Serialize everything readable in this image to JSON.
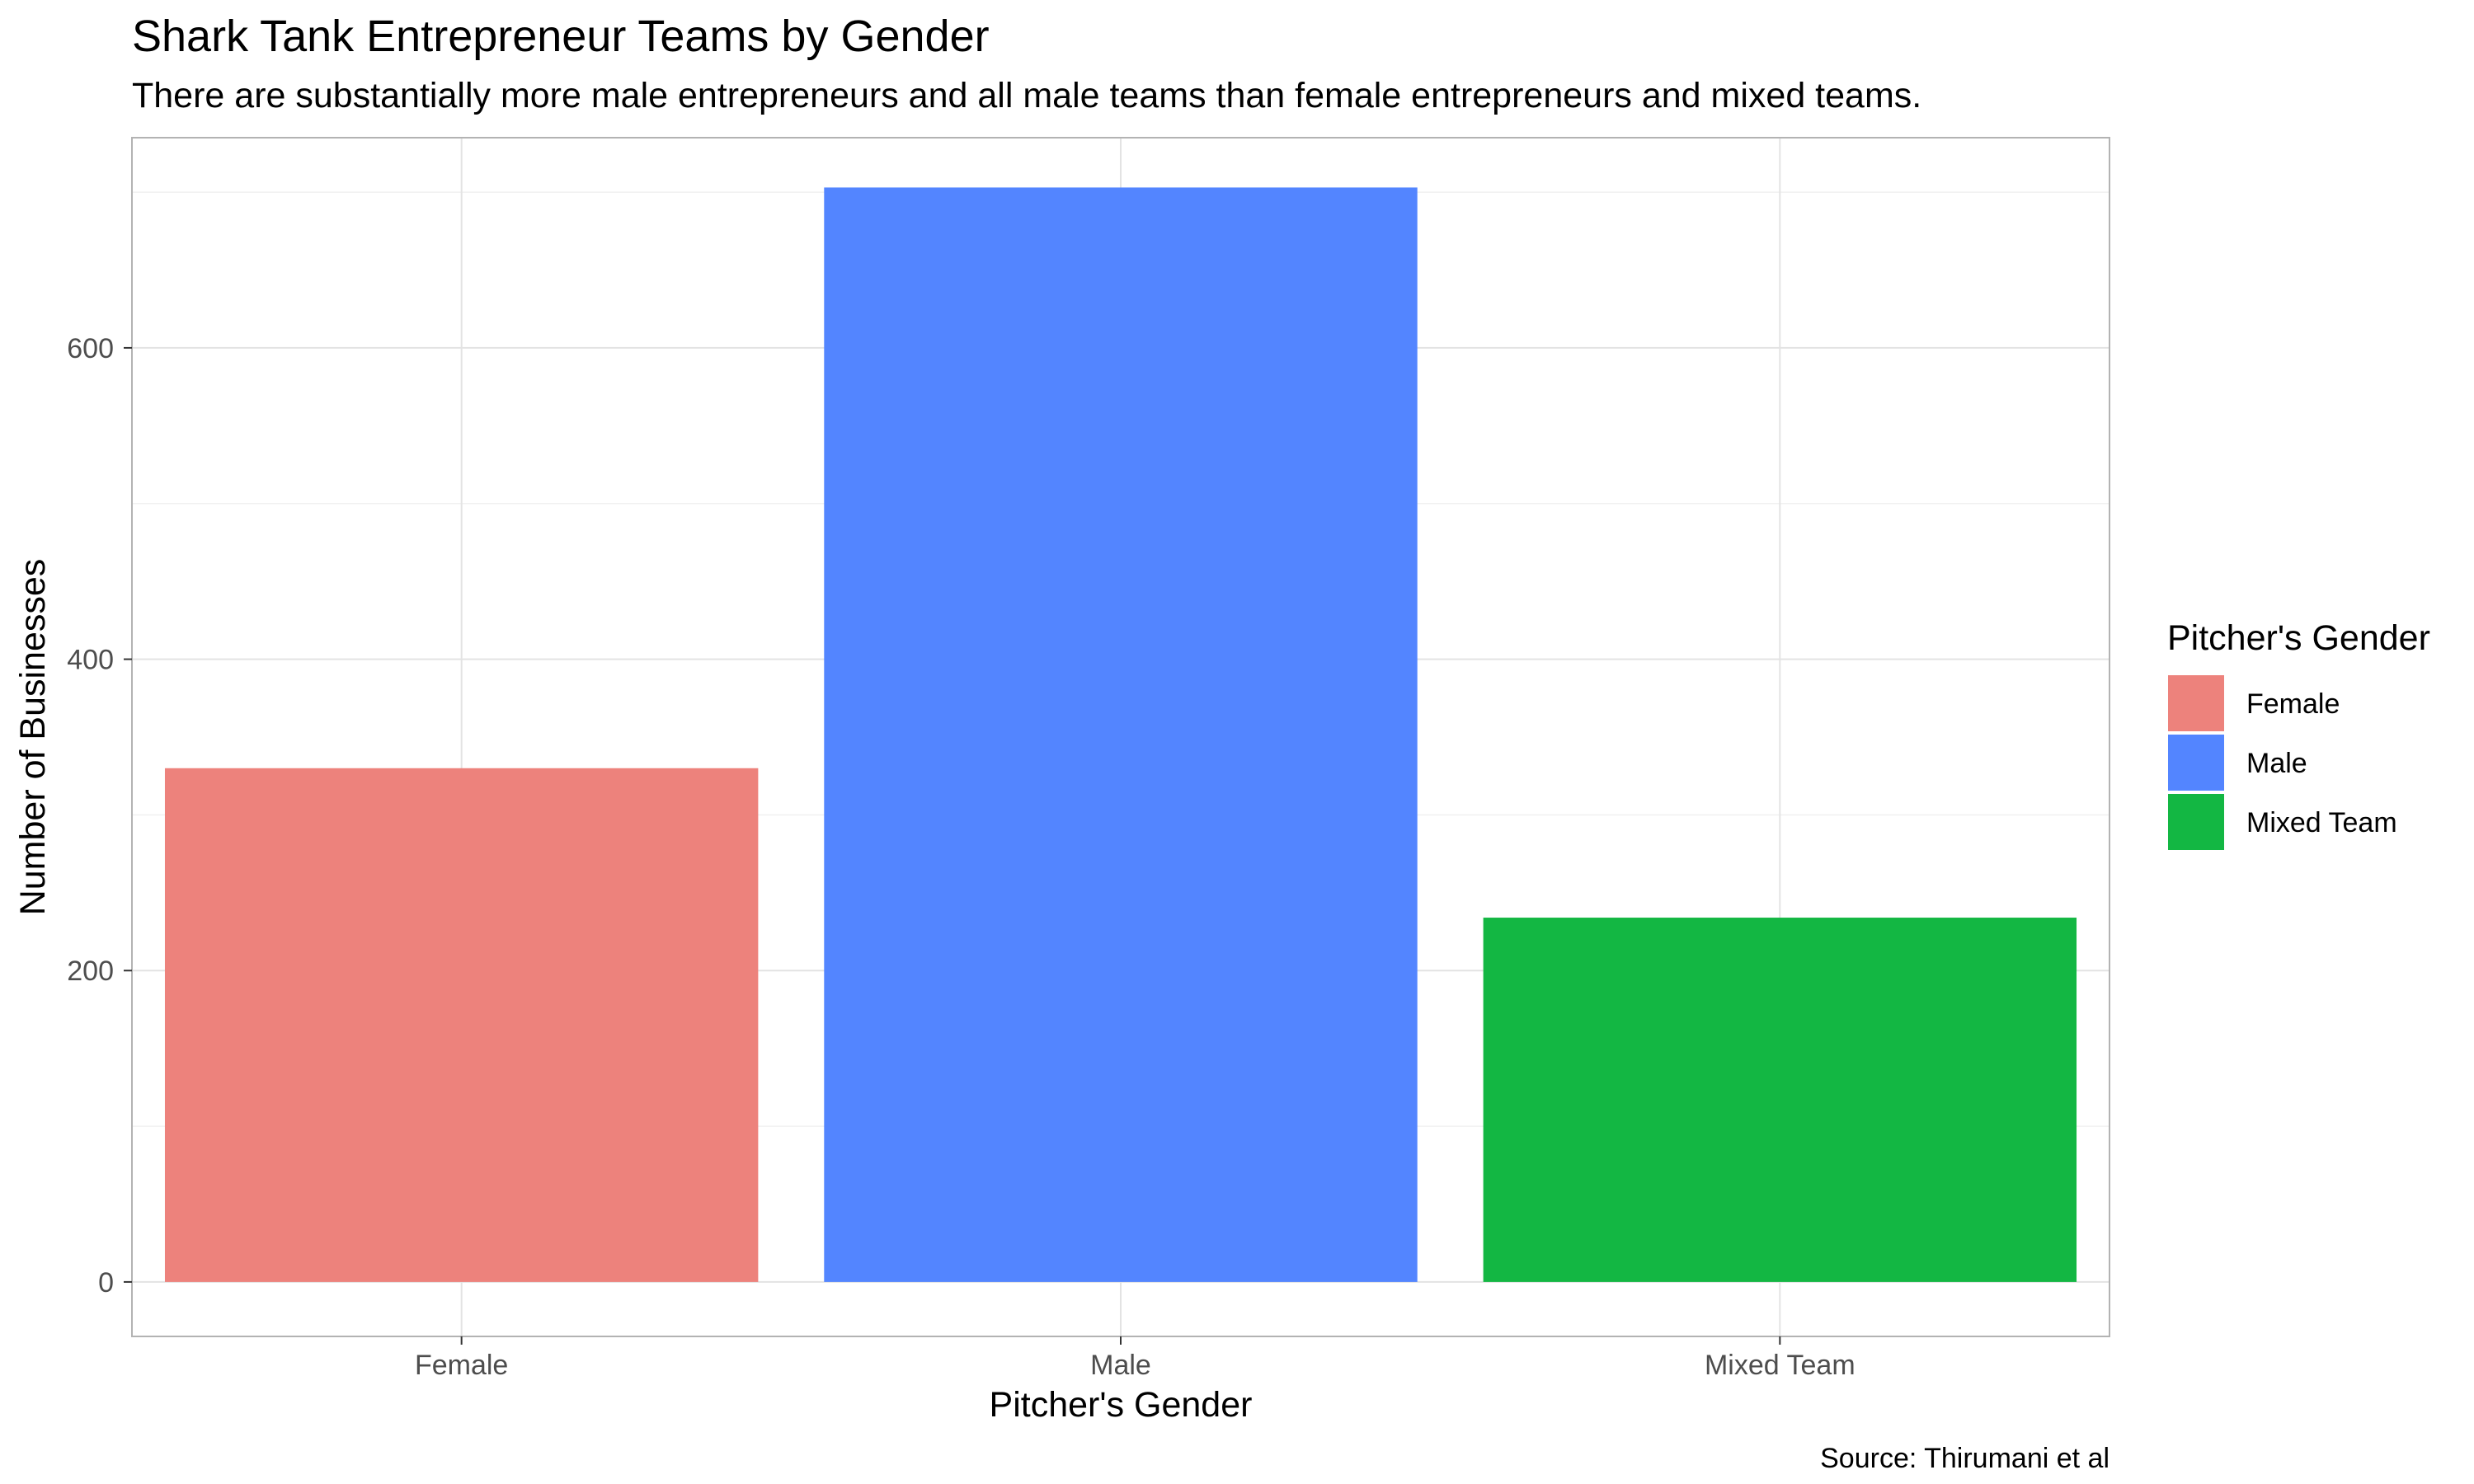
{
  "chart_data": {
    "type": "bar",
    "title": "Shark Tank Entrepreneur Teams by Gender",
    "subtitle": "There are substantially more male entrepreneurs and all male teams than female entrepreneurs and mixed teams.",
    "xlabel": "Pitcher's Gender",
    "ylabel": "Number of Businesses",
    "categories": [
      "Female",
      "Male",
      "Mixed Team"
    ],
    "values": [
      330,
      703,
      234
    ],
    "colors": [
      "#ED827C",
      "#5385FF",
      "#13B743"
    ],
    "ylim": [
      -35,
      735
    ],
    "yticks": [
      0,
      200,
      400,
      600
    ],
    "grid": true,
    "legend": {
      "title": "Pitcher's Gender",
      "position": "right",
      "items": [
        "Female",
        "Male",
        "Mixed Team"
      ]
    },
    "caption": "Source: Thirumani et al"
  }
}
